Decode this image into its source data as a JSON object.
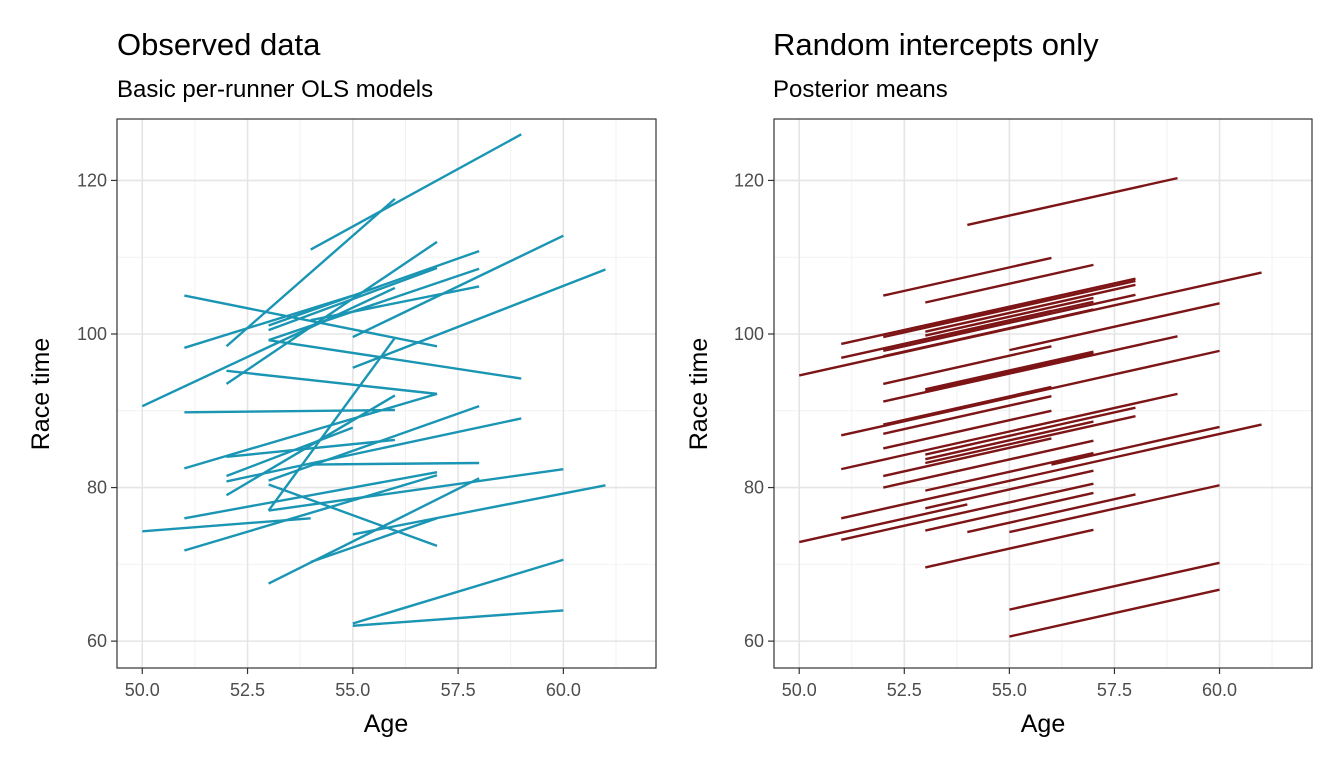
{
  "chart_data": [
    {
      "type": "line",
      "title": "Observed data",
      "subtitle": "Basic per-runner OLS models",
      "xlabel": "Age",
      "ylabel": "Race time",
      "xlim": [
        49.4,
        62.2
      ],
      "ylim": [
        56.5,
        128
      ],
      "xticks": [
        "50.0",
        "52.5",
        "55.0",
        "57.5",
        "60.0"
      ],
      "yticks": [
        "60",
        "80",
        "100",
        "120"
      ],
      "grid": true,
      "line_color": "#1A95B3",
      "series": [
        {
          "x": [
            54,
            59
          ],
          "y": [
            111,
            126
          ]
        },
        {
          "x": [
            52,
            56
          ],
          "y": [
            98.4,
            117.6
          ]
        },
        {
          "x": [
            50,
            56
          ],
          "y": [
            90.6,
            106
          ]
        },
        {
          "x": [
            52,
            57
          ],
          "y": [
            93.5,
            112
          ]
        },
        {
          "x": [
            51,
            57
          ],
          "y": [
            105,
            98.4
          ]
        },
        {
          "x": [
            51,
            55
          ],
          "y": [
            98.2,
            105
          ]
        },
        {
          "x": [
            53,
            58
          ],
          "y": [
            99.2,
            108.5
          ]
        },
        {
          "x": [
            53,
            57
          ],
          "y": [
            100.5,
            108.6
          ]
        },
        {
          "x": [
            55,
            60
          ],
          "y": [
            99.6,
            112.8
          ]
        },
        {
          "x": [
            55,
            61
          ],
          "y": [
            95.6,
            108.4
          ]
        },
        {
          "x": [
            54,
            58
          ],
          "y": [
            101.8,
            106.2
          ]
        },
        {
          "x": [
            53,
            58
          ],
          "y": [
            101.1,
            110.8
          ]
        },
        {
          "x": [
            53,
            59
          ],
          "y": [
            99.2,
            94.2
          ]
        },
        {
          "x": [
            52,
            57
          ],
          "y": [
            95.2,
            92.2
          ]
        },
        {
          "x": [
            51,
            56
          ],
          "y": [
            89.8,
            90.1
          ]
        },
        {
          "x": [
            53,
            60
          ],
          "y": [
            77,
            82.4
          ]
        },
        {
          "x": [
            52,
            56
          ],
          "y": [
            79,
            92
          ]
        },
        {
          "x": [
            53,
            56
          ],
          "y": [
            77,
            99.5
          ]
        },
        {
          "x": [
            51,
            57
          ],
          "y": [
            82.5,
            92.2
          ]
        },
        {
          "x": [
            52,
            59
          ],
          "y": [
            80.8,
            89
          ]
        },
        {
          "x": [
            52,
            56
          ],
          "y": [
            84,
            86.2
          ]
        },
        {
          "x": [
            52,
            55
          ],
          "y": [
            81.5,
            87.8
          ]
        },
        {
          "x": [
            53,
            58
          ],
          "y": [
            80.9,
            90.6
          ]
        },
        {
          "x": [
            54,
            58
          ],
          "y": [
            83,
            83.2
          ]
        },
        {
          "x": [
            51,
            57
          ],
          "y": [
            76,
            82
          ]
        },
        {
          "x": [
            51,
            57
          ],
          "y": [
            71.8,
            81.6
          ]
        },
        {
          "x": [
            53,
            57
          ],
          "y": [
            80.4,
            72.4
          ]
        },
        {
          "x": [
            53,
            58
          ],
          "y": [
            67.5,
            81.2
          ]
        },
        {
          "x": [
            54,
            57
          ],
          "y": [
            70.3,
            76
          ]
        },
        {
          "x": [
            50,
            54
          ],
          "y": [
            74.3,
            76
          ]
        },
        {
          "x": [
            55,
            61
          ],
          "y": [
            73.9,
            80.3
          ]
        },
        {
          "x": [
            55,
            60
          ],
          "y": [
            62.3,
            70.6
          ]
        },
        {
          "x": [
            55,
            60
          ],
          "y": [
            62,
            64
          ]
        }
      ]
    },
    {
      "type": "line",
      "title": "Random intercepts only",
      "subtitle": "Posterior means",
      "xlabel": "Age",
      "ylabel": "Race time",
      "xlim": [
        49.4,
        62.2
      ],
      "ylim": [
        56.5,
        128
      ],
      "xticks": [
        "50.0",
        "52.5",
        "55.0",
        "57.5",
        "60.0"
      ],
      "yticks": [
        "60",
        "80",
        "100",
        "120"
      ],
      "grid": true,
      "line_color": "#7D1416",
      "slope": 1.22,
      "series": [
        {
          "x": [
            54,
            59
          ],
          "y": [
            114.2,
            120.3
          ]
        },
        {
          "x": [
            52,
            56
          ],
          "y": [
            105,
            109.9
          ]
        },
        {
          "x": [
            53,
            57
          ],
          "y": [
            104.1,
            109
          ]
        },
        {
          "x": [
            51,
            58
          ],
          "y": [
            98.7,
            107.2
          ]
        },
        {
          "x": [
            52,
            58
          ],
          "y": [
            99.6,
            106.9
          ]
        },
        {
          "x": [
            51,
            57
          ],
          "y": [
            96.9,
            104.2
          ]
        },
        {
          "x": [
            52,
            57
          ],
          "y": [
            97.1,
            103.2
          ]
        },
        {
          "x": [
            53,
            58
          ],
          "y": [
            100.3,
            106.4
          ]
        },
        {
          "x": [
            53,
            57
          ],
          "y": [
            99.8,
            104.7
          ]
        },
        {
          "x": [
            52,
            56
          ],
          "y": [
            98.1,
            103
          ]
        },
        {
          "x": [
            52,
            58
          ],
          "y": [
            97.8,
            105.1
          ]
        },
        {
          "x": [
            53,
            56
          ],
          "y": [
            101,
            104.7
          ]
        },
        {
          "x": [
            50,
            61
          ],
          "y": [
            94.6,
            108
          ]
        },
        {
          "x": [
            55,
            60
          ],
          "y": [
            97.9,
            104
          ]
        },
        {
          "x": [
            52,
            56
          ],
          "y": [
            93.5,
            98.4
          ]
        },
        {
          "x": [
            53,
            57
          ],
          "y": [
            92.6,
            97.5
          ]
        },
        {
          "x": [
            53,
            57
          ],
          "y": [
            92.8,
            97.7
          ]
        },
        {
          "x": [
            52,
            59
          ],
          "y": [
            91.2,
            99.7
          ]
        },
        {
          "x": [
            51,
            60
          ],
          "y": [
            86.8,
            97.8
          ]
        },
        {
          "x": [
            52,
            56
          ],
          "y": [
            88.2,
            93.1
          ]
        },
        {
          "x": [
            52,
            56
          ],
          "y": [
            87,
            91.9
          ]
        },
        {
          "x": [
            52,
            56
          ],
          "y": [
            85.1,
            90
          ]
        },
        {
          "x": [
            51,
            59
          ],
          "y": [
            82.4,
            92.2
          ]
        },
        {
          "x": [
            53,
            58
          ],
          "y": [
            84.3,
            90.4
          ]
        },
        {
          "x": [
            53,
            58
          ],
          "y": [
            83.2,
            89.3
          ]
        },
        {
          "x": [
            53,
            57
          ],
          "y": [
            83.7,
            88.6
          ]
        },
        {
          "x": [
            52,
            56
          ],
          "y": [
            81.5,
            86.4
          ]
        },
        {
          "x": [
            56,
            60
          ],
          "y": [
            83,
            87.9
          ]
        },
        {
          "x": [
            52,
            57
          ],
          "y": [
            80,
            86.1
          ]
        },
        {
          "x": [
            53,
            57
          ],
          "y": [
            79.6,
            84.5
          ]
        },
        {
          "x": [
            51,
            61
          ],
          "y": [
            76,
            88.2
          ]
        },
        {
          "x": [
            53,
            57
          ],
          "y": [
            77.3,
            82.2
          ]
        },
        {
          "x": [
            50,
            54
          ],
          "y": [
            72.9,
            77.8
          ]
        },
        {
          "x": [
            51,
            57
          ],
          "y": [
            73.2,
            80.5
          ]
        },
        {
          "x": [
            53,
            57
          ],
          "y": [
            74.4,
            79.3
          ]
        },
        {
          "x": [
            54,
            58
          ],
          "y": [
            74.2,
            79.1
          ]
        },
        {
          "x": [
            55,
            60
          ],
          "y": [
            74.2,
            80.3
          ]
        },
        {
          "x": [
            53,
            57
          ],
          "y": [
            69.6,
            74.5
          ]
        },
        {
          "x": [
            55,
            60
          ],
          "y": [
            64.1,
            70.2
          ]
        },
        {
          "x": [
            55,
            60
          ],
          "y": [
            60.6,
            66.7
          ]
        }
      ]
    }
  ]
}
